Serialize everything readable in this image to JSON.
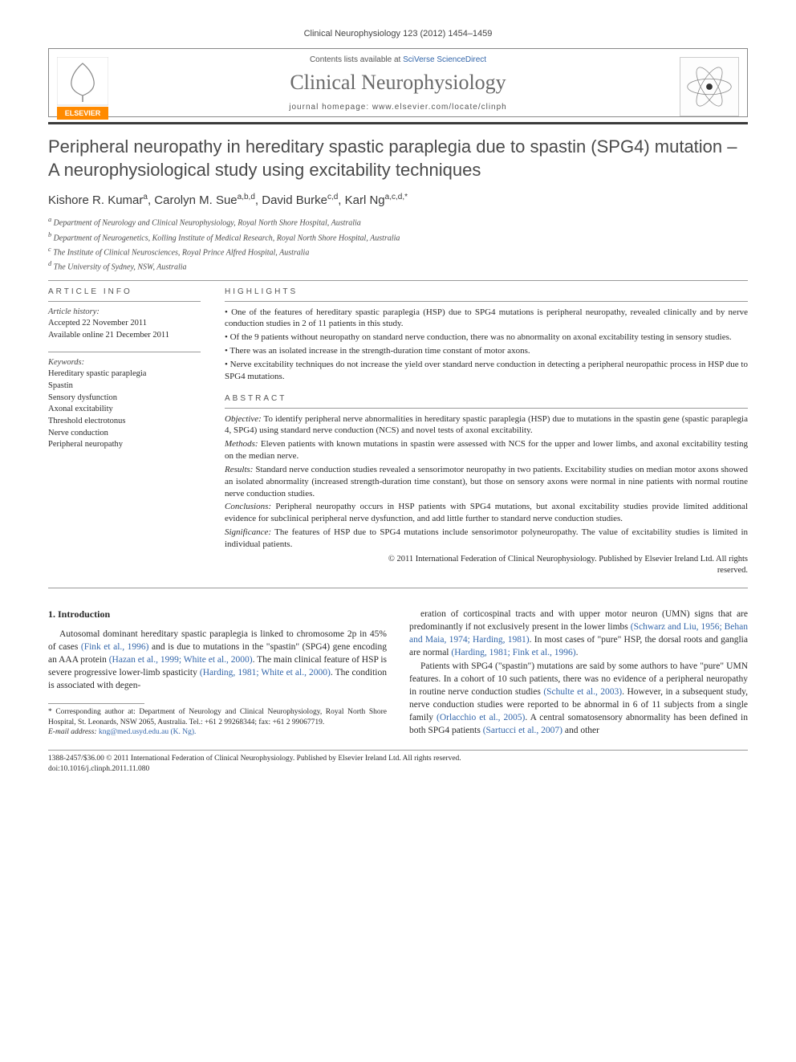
{
  "running_head": "Clinical Neurophysiology 123 (2012) 1454–1459",
  "header": {
    "contents_prefix": "Contents lists available at ",
    "contents_link": "SciVerse ScienceDirect",
    "journal_name": "Clinical Neurophysiology",
    "homepage_prefix": "journal homepage: ",
    "homepage_url": "www.elsevier.com/locate/clinph",
    "publisher": "ELSEVIER"
  },
  "article": {
    "title": "Peripheral neuropathy in hereditary spastic paraplegia due to spastin (SPG4) mutation – A neurophysiological study using excitability techniques",
    "authors_html": "Kishore R. Kumar<sup>a</sup>, Carolyn M. Sue<sup>a,b,d</sup>, David Burke<sup>c,d</sup>, Karl Ng<sup>a,c,d,*</sup>",
    "affiliations": [
      "a Department of Neurology and Clinical Neurophysiology, Royal North Shore Hospital, Australia",
      "b Department of Neurogenetics, Kolling Institute of Medical Research, Royal North Shore Hospital, Australia",
      "c The Institute of Clinical Neurosciences, Royal Prince Alfred Hospital, Australia",
      "d The University of Sydney, NSW, Australia"
    ]
  },
  "info": {
    "heading": "ARTICLE INFO",
    "history_label": "Article history:",
    "accepted": "Accepted 22 November 2011",
    "online": "Available online 21 December 2011",
    "keywords_label": "Keywords:",
    "keywords": [
      "Hereditary spastic paraplegia",
      "Spastin",
      "Sensory dysfunction",
      "Axonal excitability",
      "Threshold electrotonus",
      "Nerve conduction",
      "Peripheral neuropathy"
    ]
  },
  "highlights": {
    "heading": "HIGHLIGHTS",
    "items": [
      "One of the features of hereditary spastic paraplegia (HSP) due to SPG4 mutations is peripheral neuropathy, revealed clinically and by nerve conduction studies in 2 of 11 patients in this study.",
      "Of the 9 patients without neuropathy on standard nerve conduction, there was no abnormality on axonal excitability testing in sensory studies.",
      "There was an isolated increase in the strength-duration time constant of motor axons.",
      "Nerve excitability techniques do not increase the yield over standard nerve conduction in detecting a peripheral neuropathic process in HSP due to SPG4 mutations."
    ]
  },
  "abstract": {
    "heading": "ABSTRACT",
    "segments": [
      {
        "label": "Objective:",
        "text": "To identify peripheral nerve abnormalities in hereditary spastic paraplegia (HSP) due to mutations in the spastin gene (spastic paraplegia 4, SPG4) using standard nerve conduction (NCS) and novel tests of axonal excitability."
      },
      {
        "label": "Methods:",
        "text": "Eleven patients with known mutations in spastin were assessed with NCS for the upper and lower limbs, and axonal excitability testing on the median nerve."
      },
      {
        "label": "Results:",
        "text": "Standard nerve conduction studies revealed a sensorimotor neuropathy in two patients. Excitability studies on median motor axons showed an isolated abnormality (increased strength-duration time constant), but those on sensory axons were normal in nine patients with normal routine nerve conduction studies."
      },
      {
        "label": "Conclusions:",
        "text": "Peripheral neuropathy occurs in HSP patients with SPG4 mutations, but axonal excitability studies provide limited additional evidence for subclinical peripheral nerve dysfunction, and add little further to standard nerve conduction studies."
      },
      {
        "label": "Significance:",
        "text": "The features of HSP due to SPG4 mutations include sensorimotor polyneuropathy. The value of excitability studies is limited in individual patients."
      }
    ],
    "copyright_line1": "© 2011 International Federation of Clinical Neurophysiology. Published by Elsevier Ireland Ltd. All rights",
    "copyright_line2": "reserved."
  },
  "body": {
    "section_heading": "1. Introduction",
    "col1_para": "Autosomal dominant hereditary spastic paraplegia is linked to chromosome 2p in 45% of cases (Fink et al., 1996) and is due to mutations in the \"spastin\" (SPG4) gene encoding an AAA protein (Hazan et al., 1999; White et al., 2000). The main clinical feature of HSP is severe progressive lower-limb spasticity (Harding, 1981; White et al., 2000). The condition is associated with degen-",
    "col2_para1": "eration of corticospinal tracts and with upper motor neuron (UMN) signs that are predominantly if not exclusively present in the lower limbs (Schwarz and Liu, 1956; Behan and Maia, 1974; Harding, 1981). In most cases of \"pure\" HSP, the dorsal roots and ganglia are normal (Harding, 1981; Fink et al., 1996).",
    "col2_para2": "Patients with SPG4 (\"spastin\") mutations are said by some authors to have \"pure\" UMN features. In a cohort of 10 such patients, there was no evidence of a peripheral neuropathy in routine nerve conduction studies (Schulte et al., 2003). However, in a subsequent study, nerve conduction studies were reported to be abnormal in 6 of 11 subjects from a single family (Orlacchio et al., 2005). A central somatosensory abnormality has been defined in both SPG4 patients (Sartucci et al., 2007) and other",
    "corr_footnote": "* Corresponding author at: Department of Neurology and Clinical Neurophysiology, Royal North Shore Hospital, St. Leonards, NSW 2065, Australia. Tel.: +61 2 99268344; fax: +61 2 99067719.",
    "email_label": "E-mail address:",
    "email": "kng@med.usyd.edu.au (K. Ng)."
  },
  "footer": {
    "line1": "1388-2457/$36.00 © 2011 International Federation of Clinical Neurophysiology. Published by Elsevier Ireland Ltd. All rights reserved.",
    "line2": "doi:10.1016/j.clinph.2011.11.080"
  },
  "colors": {
    "link": "#3366aa",
    "text": "#2a2a2a",
    "muted": "#555555",
    "rule_dark": "#3a3a3a",
    "elsevier_orange": "#ff8a00"
  }
}
